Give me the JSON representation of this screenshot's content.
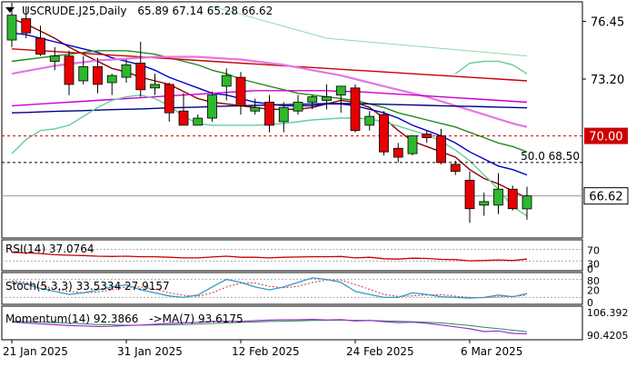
{
  "chart_data": {
    "type": "candlestick",
    "symbol_label": "USCRUDE.J25,Daily",
    "ohlc_label": "65.89 67.14 65.28 66.62",
    "y_ticks": [
      "76.45",
      "73.20",
      "70.00",
      "66.62"
    ],
    "ylim": [
      64.3,
      77.5
    ],
    "x_labels": [
      {
        "index": 0,
        "label": "21 Jan 2025"
      },
      {
        "index": 8,
        "label": "31 Jan 2025"
      },
      {
        "index": 16,
        "label": "12 Feb 2025"
      },
      {
        "index": 24,
        "label": "24 Feb 2025"
      },
      {
        "index": 32,
        "label": "6 Mar 2025"
      }
    ],
    "candles": [
      {
        "o": 75.4,
        "h": 77.5,
        "l": 75.0,
        "c": 76.8
      },
      {
        "o": 76.6,
        "h": 77.3,
        "l": 75.5,
        "c": 75.8
      },
      {
        "o": 75.5,
        "h": 76.2,
        "l": 74.5,
        "c": 74.6
      },
      {
        "o": 74.2,
        "h": 75.0,
        "l": 73.7,
        "c": 74.5
      },
      {
        "o": 74.5,
        "h": 74.8,
        "l": 72.3,
        "c": 72.9
      },
      {
        "o": 73.1,
        "h": 74.5,
        "l": 72.9,
        "c": 73.9
      },
      {
        "o": 73.9,
        "h": 74.4,
        "l": 72.4,
        "c": 72.9
      },
      {
        "o": 73.0,
        "h": 73.5,
        "l": 72.3,
        "c": 73.4
      },
      {
        "o": 73.3,
        "h": 74.3,
        "l": 73.0,
        "c": 74.0
      },
      {
        "o": 74.1,
        "h": 75.3,
        "l": 72.2,
        "c": 72.6
      },
      {
        "o": 72.7,
        "h": 73.5,
        "l": 72.3,
        "c": 72.9
      },
      {
        "o": 72.9,
        "h": 73.0,
        "l": 70.8,
        "c": 71.3
      },
      {
        "o": 71.4,
        "h": 72.4,
        "l": 70.6,
        "c": 70.6
      },
      {
        "o": 70.6,
        "h": 71.2,
        "l": 70.6,
        "c": 71.0
      },
      {
        "o": 71.0,
        "h": 72.5,
        "l": 70.8,
        "c": 72.3
      },
      {
        "o": 72.8,
        "h": 73.8,
        "l": 72.0,
        "c": 73.4
      },
      {
        "o": 73.3,
        "h": 73.6,
        "l": 71.2,
        "c": 71.7
      },
      {
        "o": 71.4,
        "h": 72.1,
        "l": 71.2,
        "c": 71.6
      },
      {
        "o": 71.9,
        "h": 72.3,
        "l": 70.2,
        "c": 70.6
      },
      {
        "o": 70.8,
        "h": 71.9,
        "l": 70.2,
        "c": 71.6
      },
      {
        "o": 71.4,
        "h": 72.3,
        "l": 71.2,
        "c": 71.9
      },
      {
        "o": 71.9,
        "h": 72.3,
        "l": 71.5,
        "c": 72.2
      },
      {
        "o": 72.0,
        "h": 72.9,
        "l": 71.5,
        "c": 72.2
      },
      {
        "o": 72.3,
        "h": 72.8,
        "l": 71.3,
        "c": 72.8
      },
      {
        "o": 72.7,
        "h": 72.9,
        "l": 70.2,
        "c": 70.3
      },
      {
        "o": 70.6,
        "h": 71.4,
        "l": 70.3,
        "c": 71.1
      },
      {
        "o": 71.2,
        "h": 71.4,
        "l": 68.9,
        "c": 69.1
      },
      {
        "o": 69.3,
        "h": 69.6,
        "l": 68.5,
        "c": 68.8
      },
      {
        "o": 69.0,
        "h": 70.0,
        "l": 68.9,
        "c": 70.0
      },
      {
        "o": 70.1,
        "h": 70.3,
        "l": 69.6,
        "c": 69.9
      },
      {
        "o": 70.0,
        "h": 70.4,
        "l": 68.4,
        "c": 68.5
      },
      {
        "o": 68.4,
        "h": 68.6,
        "l": 67.8,
        "c": 68.0
      },
      {
        "o": 67.5,
        "h": 68.0,
        "l": 65.1,
        "c": 65.9
      },
      {
        "o": 66.1,
        "h": 66.8,
        "l": 65.5,
        "c": 66.3
      },
      {
        "o": 66.1,
        "h": 67.9,
        "l": 65.6,
        "c": 67.0
      },
      {
        "o": 67.0,
        "h": 67.2,
        "l": 65.8,
        "c": 65.9
      },
      {
        "o": 65.89,
        "h": 67.14,
        "l": 65.28,
        "c": 66.62
      }
    ],
    "moving_averages": [
      {
        "color": "#8b0000",
        "values": [
          76.6,
          76.3,
          75.9,
          75.5,
          75.0,
          74.6,
          74.2,
          73.8,
          73.6,
          73.3,
          73.1,
          72.9,
          72.5,
          72.1,
          71.9,
          71.8,
          71.7,
          71.6,
          71.5,
          71.5,
          71.5,
          71.6,
          71.8,
          72.0,
          71.9,
          71.6,
          71.0,
          70.3,
          69.7,
          69.4,
          69.1,
          68.8,
          68.1,
          67.6,
          67.3,
          66.9,
          66.5
        ]
      },
      {
        "color": "#0000cc",
        "values": [
          75.8,
          75.7,
          75.5,
          75.3,
          75.1,
          74.9,
          74.7,
          74.4,
          74.2,
          74.0,
          73.7,
          73.3,
          73.0,
          72.7,
          72.4,
          72.3,
          72.1,
          71.9,
          71.8,
          71.7,
          71.7,
          71.7,
          71.8,
          71.8,
          71.7,
          71.5,
          71.3,
          71.0,
          70.6,
          70.3,
          70.0,
          69.6,
          69.1,
          68.7,
          68.3,
          68.1,
          67.8
        ]
      },
      {
        "color": "#228b22",
        "values": [
          74.2,
          74.3,
          74.4,
          74.5,
          74.6,
          74.7,
          74.8,
          74.8,
          74.8,
          74.7,
          74.6,
          74.4,
          74.2,
          74.0,
          73.7,
          73.5,
          73.2,
          73.0,
          72.8,
          72.6,
          72.4,
          72.3,
          72.2,
          72.1,
          72.0,
          71.8,
          71.6,
          71.3,
          71.1,
          70.9,
          70.7,
          70.5,
          70.2,
          69.9,
          69.6,
          69.4,
          69.1
        ]
      },
      {
        "color": "#cc0000",
        "values": [
          74.9,
          74.85,
          74.8,
          74.75,
          74.7,
          74.65,
          74.6,
          74.55,
          74.5,
          74.45,
          74.4,
          74.35,
          74.3,
          74.25,
          74.2,
          74.15,
          74.1,
          74.05,
          74.0,
          73.95,
          73.9,
          73.85,
          73.8,
          73.75,
          73.7,
          73.65,
          73.6,
          73.55,
          73.5,
          73.45,
          73.4,
          73.35,
          73.3,
          73.25,
          73.2,
          73.15,
          73.1
        ]
      },
      {
        "color": "#e377e3",
        "values": [
          73.5,
          73.65,
          73.8,
          73.95,
          74.05,
          74.15,
          74.25,
          74.3,
          74.35,
          74.4,
          74.45,
          74.45,
          74.45,
          74.45,
          74.4,
          74.35,
          74.3,
          74.2,
          74.1,
          74.0,
          73.85,
          73.7,
          73.55,
          73.4,
          73.2,
          73.0,
          72.8,
          72.6,
          72.4,
          72.2,
          71.95,
          71.7,
          71.45,
          71.2,
          70.95,
          70.7,
          70.5
        ]
      },
      {
        "color": "#cc00cc",
        "values": [
          71.7,
          71.75,
          71.8,
          71.85,
          71.9,
          71.95,
          72.0,
          72.05,
          72.1,
          72.15,
          72.2,
          72.25,
          72.3,
          72.35,
          72.4,
          72.45,
          72.5,
          72.55,
          72.55,
          72.55,
          72.55,
          72.55,
          72.55,
          72.5,
          72.5,
          72.45,
          72.4,
          72.35,
          72.3,
          72.25,
          72.2,
          72.15,
          72.1,
          72.05,
          72.0,
          71.95,
          71.9
        ]
      },
      {
        "color": "#000080",
        "values": [
          71.3,
          71.32,
          71.35,
          71.38,
          71.4,
          71.42,
          71.45,
          71.48,
          71.5,
          71.52,
          71.55,
          71.58,
          71.6,
          71.62,
          71.65,
          71.68,
          71.7,
          71.72,
          71.74,
          71.76,
          71.78,
          71.8,
          71.82,
          71.82,
          71.82,
          71.8,
          71.78,
          71.76,
          71.74,
          71.72,
          71.7,
          71.68,
          71.66,
          71.64,
          71.62,
          71.6,
          71.58
        ]
      },
      {
        "color": "#66cc99",
        "values": [
          69.0,
          69.8,
          70.3,
          70.4,
          70.6,
          71.1,
          71.6,
          72.0,
          72.2,
          72.3,
          72.1,
          71.7,
          71.1,
          70.7,
          70.6,
          70.6,
          70.6,
          70.6,
          70.65,
          70.7,
          70.8,
          70.9,
          70.95,
          71.0,
          71.0,
          70.95,
          70.8,
          70.55,
          70.3,
          70.05,
          69.7,
          69.2,
          68.6,
          67.8,
          67.0,
          66.0,
          65.5
        ]
      },
      {
        "color": "#66cc99",
        "values": [
          null,
          null,
          null,
          null,
          null,
          null,
          null,
          null,
          null,
          null,
          null,
          null,
          null,
          null,
          null,
          null,
          null,
          null,
          null,
          null,
          null,
          null,
          null,
          null,
          null,
          null,
          null,
          null,
          null,
          null,
          null,
          73.5,
          74.1,
          74.2,
          74.2,
          74.0,
          73.5
        ]
      }
    ],
    "trend_line": [
      {
        "x": 14,
        "y": 77.3
      },
      {
        "x": 22,
        "y": 75.5
      },
      {
        "x": 36,
        "y": 74.5
      }
    ],
    "levels": [
      {
        "value": 70.0,
        "label": "70.00",
        "style": "dashed",
        "color": "#cc0000",
        "boxed": true
      },
      {
        "value": 68.5,
        "label": "50.0 68.50",
        "style": "dashed",
        "color": "#000000",
        "boxed": false
      }
    ],
    "current_price": {
      "value": 66.62,
      "label": "66.62"
    },
    "rsi": {
      "label": "RSI(14) 37.0764",
      "scale_labels": [
        "70",
        "30",
        "0"
      ],
      "color": "#cc0000",
      "values": [
        60,
        58,
        56,
        52,
        50,
        49,
        47,
        46,
        47,
        45,
        45,
        43,
        41,
        41,
        44,
        47,
        43,
        43,
        41,
        43,
        44,
        45,
        45,
        46,
        41,
        43,
        38,
        37,
        40,
        39,
        36,
        35,
        31,
        32,
        34,
        32,
        37
      ]
    },
    "stoch": {
      "label": "Stoch(5,3,3) 33.5334 27.9157",
      "scale_labels": [
        "80",
        "20",
        "0"
      ],
      "k_color": "#3399cc",
      "d_color": "#cc3333",
      "k": [
        70,
        65,
        50,
        40,
        30,
        35,
        45,
        55,
        62,
        45,
        35,
        25,
        20,
        28,
        55,
        80,
        70,
        55,
        45,
        55,
        70,
        85,
        80,
        70,
        40,
        30,
        20,
        20,
        35,
        30,
        22,
        20,
        18,
        20,
        28,
        22,
        33
      ],
      "d": [
        75,
        70,
        60,
        50,
        40,
        35,
        38,
        45,
        55,
        55,
        48,
        35,
        27,
        24,
        35,
        55,
        68,
        68,
        57,
        52,
        57,
        70,
        78,
        78,
        63,
        47,
        30,
        23,
        25,
        28,
        29,
        24,
        20,
        19,
        22,
        23,
        28
      ]
    },
    "momentum": {
      "label": "Momentum(14) 92.3866",
      "ma_label": "->MA(7) 93.6175",
      "scale_labels": [
        "106.392",
        "90.4205"
      ],
      "mom_color": "#9932cc",
      "ma_color": "#2e8b57",
      "values": [
        99,
        98.5,
        98,
        97.5,
        97,
        96.8,
        96.5,
        96.6,
        97,
        97.3,
        97.8,
        98.2,
        98.5,
        98.8,
        99.3,
        99.5,
        99.3,
        99.8,
        100.1,
        100.3,
        100.3,
        100.5,
        100.2,
        100.4,
        99.6,
        99.9,
        99.2,
        98.7,
        98.9,
        98.3,
        97.3,
        96.3,
        95.2,
        93.6,
        94.0,
        92.6,
        92.39
      ],
      "ma": [
        99.5,
        99.3,
        99.0,
        98.7,
        98.4,
        98.0,
        97.7,
        97.4,
        97.2,
        97.2,
        97.3,
        97.4,
        97.6,
        97.9,
        98.2,
        98.5,
        98.8,
        99.0,
        99.3,
        99.5,
        99.7,
        99.9,
        100.0,
        100.1,
        100.0,
        99.9,
        99.7,
        99.5,
        99.2,
        98.9,
        98.5,
        97.8,
        97.0,
        96.1,
        95.3,
        94.4,
        93.6
      ]
    }
  }
}
